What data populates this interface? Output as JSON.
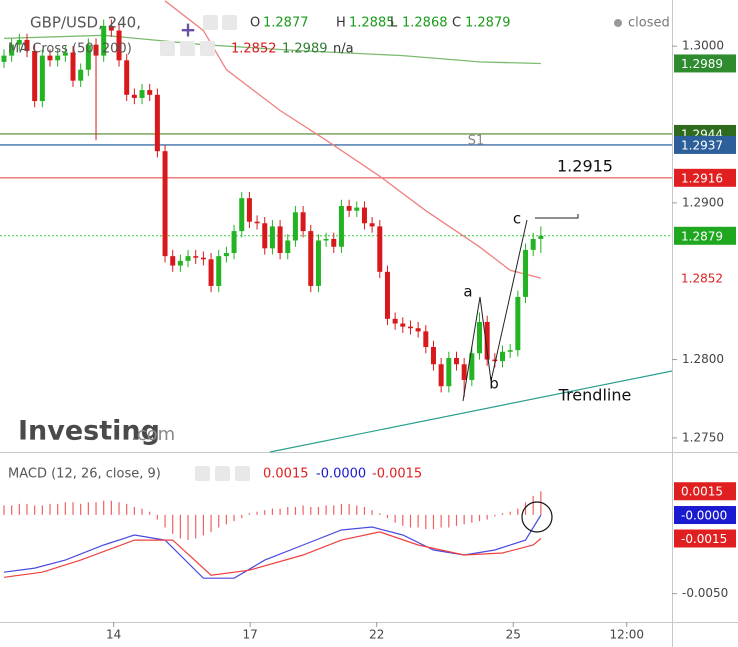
{
  "chart_data": [
    {
      "type": "candlestick",
      "title": "GBP/USD, 240,",
      "ohlc_legend": {
        "labels": [
          "O",
          "H",
          "L",
          "C"
        ],
        "values": [
          1.2877,
          1.2885,
          1.2868,
          1.2879
        ],
        "color": "#1a9c1a"
      },
      "status": "closed",
      "watermark": [
        "Investing",
        ".com"
      ],
      "up_color": "#22b422",
      "down_color": "#d7191c",
      "x": [
        0,
        1,
        2,
        3,
        4,
        5,
        6,
        7,
        8,
        9,
        10,
        11,
        12,
        13,
        14,
        15,
        16,
        17,
        18,
        19,
        20,
        21,
        22,
        23,
        24,
        25,
        26,
        27,
        28,
        29,
        30,
        31,
        32,
        33,
        34,
        35,
        36,
        37,
        38,
        39,
        40,
        41,
        42,
        43,
        44,
        45,
        46,
        47,
        48,
        49,
        50,
        51,
        52,
        53,
        54,
        55,
        56,
        57,
        58,
        59,
        60,
        61,
        62,
        63,
        64,
        65,
        66,
        67,
        68,
        69,
        70
      ],
      "open": [
        1.299,
        1.2994,
        1.3001,
        1.3004,
        1.2997,
        1.2965,
        1.2994,
        1.2991,
        1.2994,
        1.2996,
        1.2978,
        1.2985,
        1.3001,
        1.2994,
        1.3013,
        1.301,
        1.2991,
        1.2969,
        1.2967,
        1.2972,
        1.2969,
        1.2933,
        1.2866,
        1.286,
        1.2863,
        1.2866,
        1.2865,
        1.2864,
        1.2847,
        1.2866,
        1.2868,
        1.2882,
        1.2903,
        1.2888,
        1.2887,
        1.2871,
        1.2885,
        1.2868,
        1.2876,
        1.2894,
        1.2882,
        1.2847,
        1.2876,
        1.2877,
        1.2872,
        1.2898,
        1.2895,
        1.2897,
        1.2887,
        1.2885,
        1.2856,
        1.2826,
        1.2823,
        1.2821,
        1.282,
        1.2818,
        1.2808,
        1.2797,
        1.2783,
        1.2801,
        1.2797,
        1.2787,
        1.2804,
        1.2824,
        1.28,
        1.2799,
        1.2805,
        1.2806,
        1.284,
        1.287,
        1.2877
      ],
      "high": [
        1.2998,
        1.3005,
        1.3008,
        1.3008,
        1.3001,
        1.2998,
        1.2998,
        1.2998,
        1.3,
        1.3,
        1.2989,
        1.3005,
        1.3005,
        1.3017,
        1.3017,
        1.3014,
        1.2995,
        1.2973,
        1.2976,
        1.2976,
        1.2973,
        1.2937,
        1.287,
        1.2867,
        1.287,
        1.287,
        1.2869,
        1.2868,
        1.287,
        1.2872,
        1.2886,
        1.2907,
        1.2907,
        1.2892,
        1.2891,
        1.2889,
        1.2889,
        1.288,
        1.2898,
        1.2898,
        1.2886,
        1.288,
        1.2881,
        1.2881,
        1.2902,
        1.2902,
        1.2901,
        1.2901,
        1.2891,
        1.2889,
        1.286,
        1.283,
        1.2827,
        1.2825,
        1.2824,
        1.2822,
        1.2812,
        1.2801,
        1.2805,
        1.2805,
        1.2801,
        1.2808,
        1.283,
        1.2828,
        1.2804,
        1.2809,
        1.281,
        1.2844,
        1.2874,
        1.2881,
        1.2885
      ],
      "low": [
        1.2986,
        1.299,
        1.2997,
        1.2993,
        1.2961,
        1.2961,
        1.2987,
        1.2987,
        1.299,
        1.2974,
        1.2974,
        1.2981,
        1.294,
        1.299,
        1.3006,
        1.2987,
        1.2965,
        1.2963,
        1.2963,
        1.2965,
        1.2929,
        1.2862,
        1.2856,
        1.2856,
        1.2859,
        1.2861,
        1.286,
        1.2843,
        1.2843,
        1.2862,
        1.2864,
        1.2878,
        1.2884,
        1.2883,
        1.2867,
        1.2867,
        1.2864,
        1.2864,
        1.2872,
        1.2878,
        1.2843,
        1.2843,
        1.2872,
        1.2868,
        1.2868,
        1.2891,
        1.2891,
        1.2883,
        1.2881,
        1.2852,
        1.2822,
        1.2819,
        1.2817,
        1.2816,
        1.2814,
        1.2804,
        1.2793,
        1.2779,
        1.2779,
        1.2793,
        1.2776,
        1.2783,
        1.28,
        1.2796,
        1.2795,
        1.2795,
        1.2801,
        1.2802,
        1.2836,
        1.2866,
        1.2868
      ],
      "close": [
        1.2994,
        1.3001,
        1.3004,
        1.2997,
        1.2965,
        1.2994,
        1.2991,
        1.2994,
        1.2996,
        1.2978,
        1.2985,
        1.3001,
        1.2994,
        1.3013,
        1.301,
        1.2991,
        1.2969,
        1.2967,
        1.2972,
        1.2969,
        1.2933,
        1.2866,
        1.286,
        1.2863,
        1.2866,
        1.2865,
        1.2864,
        1.2847,
        1.2866,
        1.2868,
        1.2882,
        1.2903,
        1.2888,
        1.2887,
        1.2871,
        1.2885,
        1.2868,
        1.2876,
        1.2894,
        1.2882,
        1.2847,
        1.2876,
        1.2877,
        1.2872,
        1.2898,
        1.2895,
        1.2897,
        1.2887,
        1.2885,
        1.2856,
        1.2826,
        1.2823,
        1.2821,
        1.282,
        1.2818,
        1.2808,
        1.2797,
        1.2783,
        1.2801,
        1.2797,
        1.2787,
        1.2804,
        1.2824,
        1.28,
        1.2799,
        1.2805,
        1.2806,
        1.284,
        1.287,
        1.2877,
        1.2879
      ],
      "ma": {
        "label": "MA Cross (50, 200)",
        "legend_values": [
          1.2852,
          1.2989
        ],
        "legend_colors": [
          "#d7191c",
          "#2e7d32"
        ],
        "na": "n/a",
        "lines": [
          {
            "color": "#f08080",
            "x": [
              21,
              26,
              29,
              36,
              42,
              49,
              55,
              62,
              66,
              70
            ],
            "values": [
              1.3029,
              1.301,
              1.2985,
              1.2959,
              1.294,
              1.2917,
              1.2895,
              1.2872,
              1.2857,
              1.2852
            ]
          },
          {
            "color": "#7dbb6f",
            "x": [
              0,
              13,
              26,
              39,
              52,
              62,
              70
            ],
            "values": [
              1.3005,
              1.3007,
              1.3001,
              1.2997,
              1.2994,
              1.299,
              1.2989
            ]
          }
        ]
      },
      "levels": [
        {
          "value": 1.2944,
          "color": "#6f9a4f"
        },
        {
          "value": 1.2937,
          "color": "#3f6fa8"
        },
        {
          "value": 1.2916,
          "color": "#f07070"
        }
      ],
      "level_label": "S1",
      "price_line": {
        "value": 1.2879,
        "color": "#38c438"
      },
      "markers": [
        {
          "value": 1.2989,
          "color": "#2e8b2e",
          "boxed": true
        },
        {
          "value": 1.2944,
          "color": "#2f6b1f",
          "boxed": true
        },
        {
          "value": 1.2937,
          "color": "#2d5f9a",
          "boxed": true
        },
        {
          "value": 1.2916,
          "color": "#e02020",
          "boxed": true
        },
        {
          "value": 1.2879,
          "color": "#1fa81f",
          "boxed": true
        },
        {
          "value": 1.2852,
          "color": "#e02020",
          "boxed": false
        }
      ],
      "annotations": [
        "a",
        "b",
        "c",
        "1.2915",
        "Trendline"
      ],
      "xlim": [
        -0.52,
        87.1
      ],
      "ylim": [
        1.2741,
        1.30295
      ],
      "yticks": [
        {
          "value": 1.3,
          "label": "1.3000"
        },
        {
          "value": 1.29,
          "label": "1.2900"
        },
        {
          "value": 1.28,
          "label": "1.2800"
        },
        {
          "value": 1.275,
          "label": "1.2750"
        }
      ]
    },
    {
      "type": "macd",
      "title": "MACD (12, 26, close, 9)",
      "legend_values": [
        "0.0015",
        "-0.0000",
        "-0.0015"
      ],
      "legend_colors": [
        "#e02020",
        "#1a1ad0",
        "#e02020"
      ],
      "histogram": {
        "color": "#f06060",
        "x": [
          0,
          1,
          2,
          3,
          4,
          5,
          6,
          7,
          8,
          9,
          10,
          11,
          12,
          13,
          14,
          15,
          16,
          17,
          18,
          19,
          20,
          21,
          22,
          23,
          24,
          25,
          26,
          27,
          28,
          29,
          30,
          31,
          32,
          33,
          34,
          35,
          36,
          37,
          38,
          39,
          40,
          41,
          42,
          43,
          44,
          45,
          46,
          47,
          48,
          49,
          50,
          51,
          52,
          53,
          54,
          55,
          56,
          57,
          58,
          59,
          60,
          61,
          62,
          63,
          64,
          65,
          66,
          67,
          68,
          69,
          70
        ],
        "values": [
          0.0006,
          0.0006,
          0.0007,
          0.0007,
          0.0006,
          0.0006,
          0.0007,
          0.0007,
          0.0008,
          0.0008,
          0.0007,
          0.0008,
          0.0008,
          0.0009,
          0.0009,
          0.0008,
          0.0007,
          0.0005,
          0.0004,
          0.0002,
          -0.0003,
          -0.0008,
          -0.0012,
          -0.0015,
          -0.0016,
          -0.0015,
          -0.0013,
          -0.0011,
          -0.0008,
          -0.0006,
          -0.0004,
          -0.0002,
          0.0001,
          0.0002,
          0.0003,
          0.0004,
          0.0004,
          0.0005,
          0.0005,
          0.0006,
          0.0005,
          0.0005,
          0.0006,
          0.0006,
          0.0007,
          0.0007,
          0.0006,
          0.0005,
          0.0003,
          0.0001,
          -0.0002,
          -0.0005,
          -0.0007,
          -0.0008,
          -0.0008,
          -0.0009,
          -0.0009,
          -0.0008,
          -0.0008,
          -0.0007,
          -0.0006,
          -0.0005,
          -0.0004,
          -0.0003,
          -0.0001,
          0.0001,
          0.0002,
          0.0004,
          0.0008,
          0.0012,
          0.0015
        ]
      },
      "series": [
        {
          "color": "#4a4ae0",
          "x": [
            0,
            4,
            8,
            13,
            17,
            21,
            26,
            30,
            34,
            39,
            44,
            48,
            52,
            56,
            60,
            64,
            68,
            70
          ],
          "values": [
            -0.00364,
            -0.00338,
            -0.00287,
            -0.00191,
            -0.00128,
            -0.0016,
            -0.00402,
            -0.00402,
            -0.00287,
            -0.00191,
            -0.00096,
            -0.00077,
            -0.00128,
            -0.00223,
            -0.00255,
            -0.00223,
            -0.0016,
            -1e-05
          ]
        },
        {
          "color": "#f04040",
          "x": [
            0,
            5,
            10,
            17,
            22,
            27,
            32,
            39,
            44,
            49,
            54,
            60,
            65,
            69,
            70
          ],
          "values": [
            -0.00396,
            -0.00364,
            -0.00287,
            -0.0016,
            -0.0016,
            -0.00383,
            -0.00351,
            -0.00255,
            -0.0016,
            -0.00108,
            -0.00191,
            -0.00255,
            -0.00242,
            -0.00191,
            -0.0015
          ]
        }
      ],
      "markers": [
        {
          "value": 0.0015,
          "label": "0.0015",
          "color": "#e02020"
        },
        {
          "value": -1e-05,
          "label": "-0.0000",
          "color": "#1a1ad0"
        },
        {
          "value": -0.0015,
          "label": "-0.0015",
          "color": "#e02020"
        }
      ],
      "xlim": [
        -0.52,
        87.1
      ],
      "xticks": [
        {
          "value": 14.3,
          "label": "14"
        },
        {
          "value": 32.1,
          "label": "17"
        },
        {
          "value": 48.6,
          "label": "22"
        },
        {
          "value": 66.4,
          "label": "25"
        },
        {
          "value": 81.2,
          "label": "12:00"
        }
      ],
      "ylim": [
        -0.0068,
        0.0038
      ],
      "yticks": [
        {
          "value": -0.005,
          "label": "-0.0050"
        }
      ]
    }
  ]
}
